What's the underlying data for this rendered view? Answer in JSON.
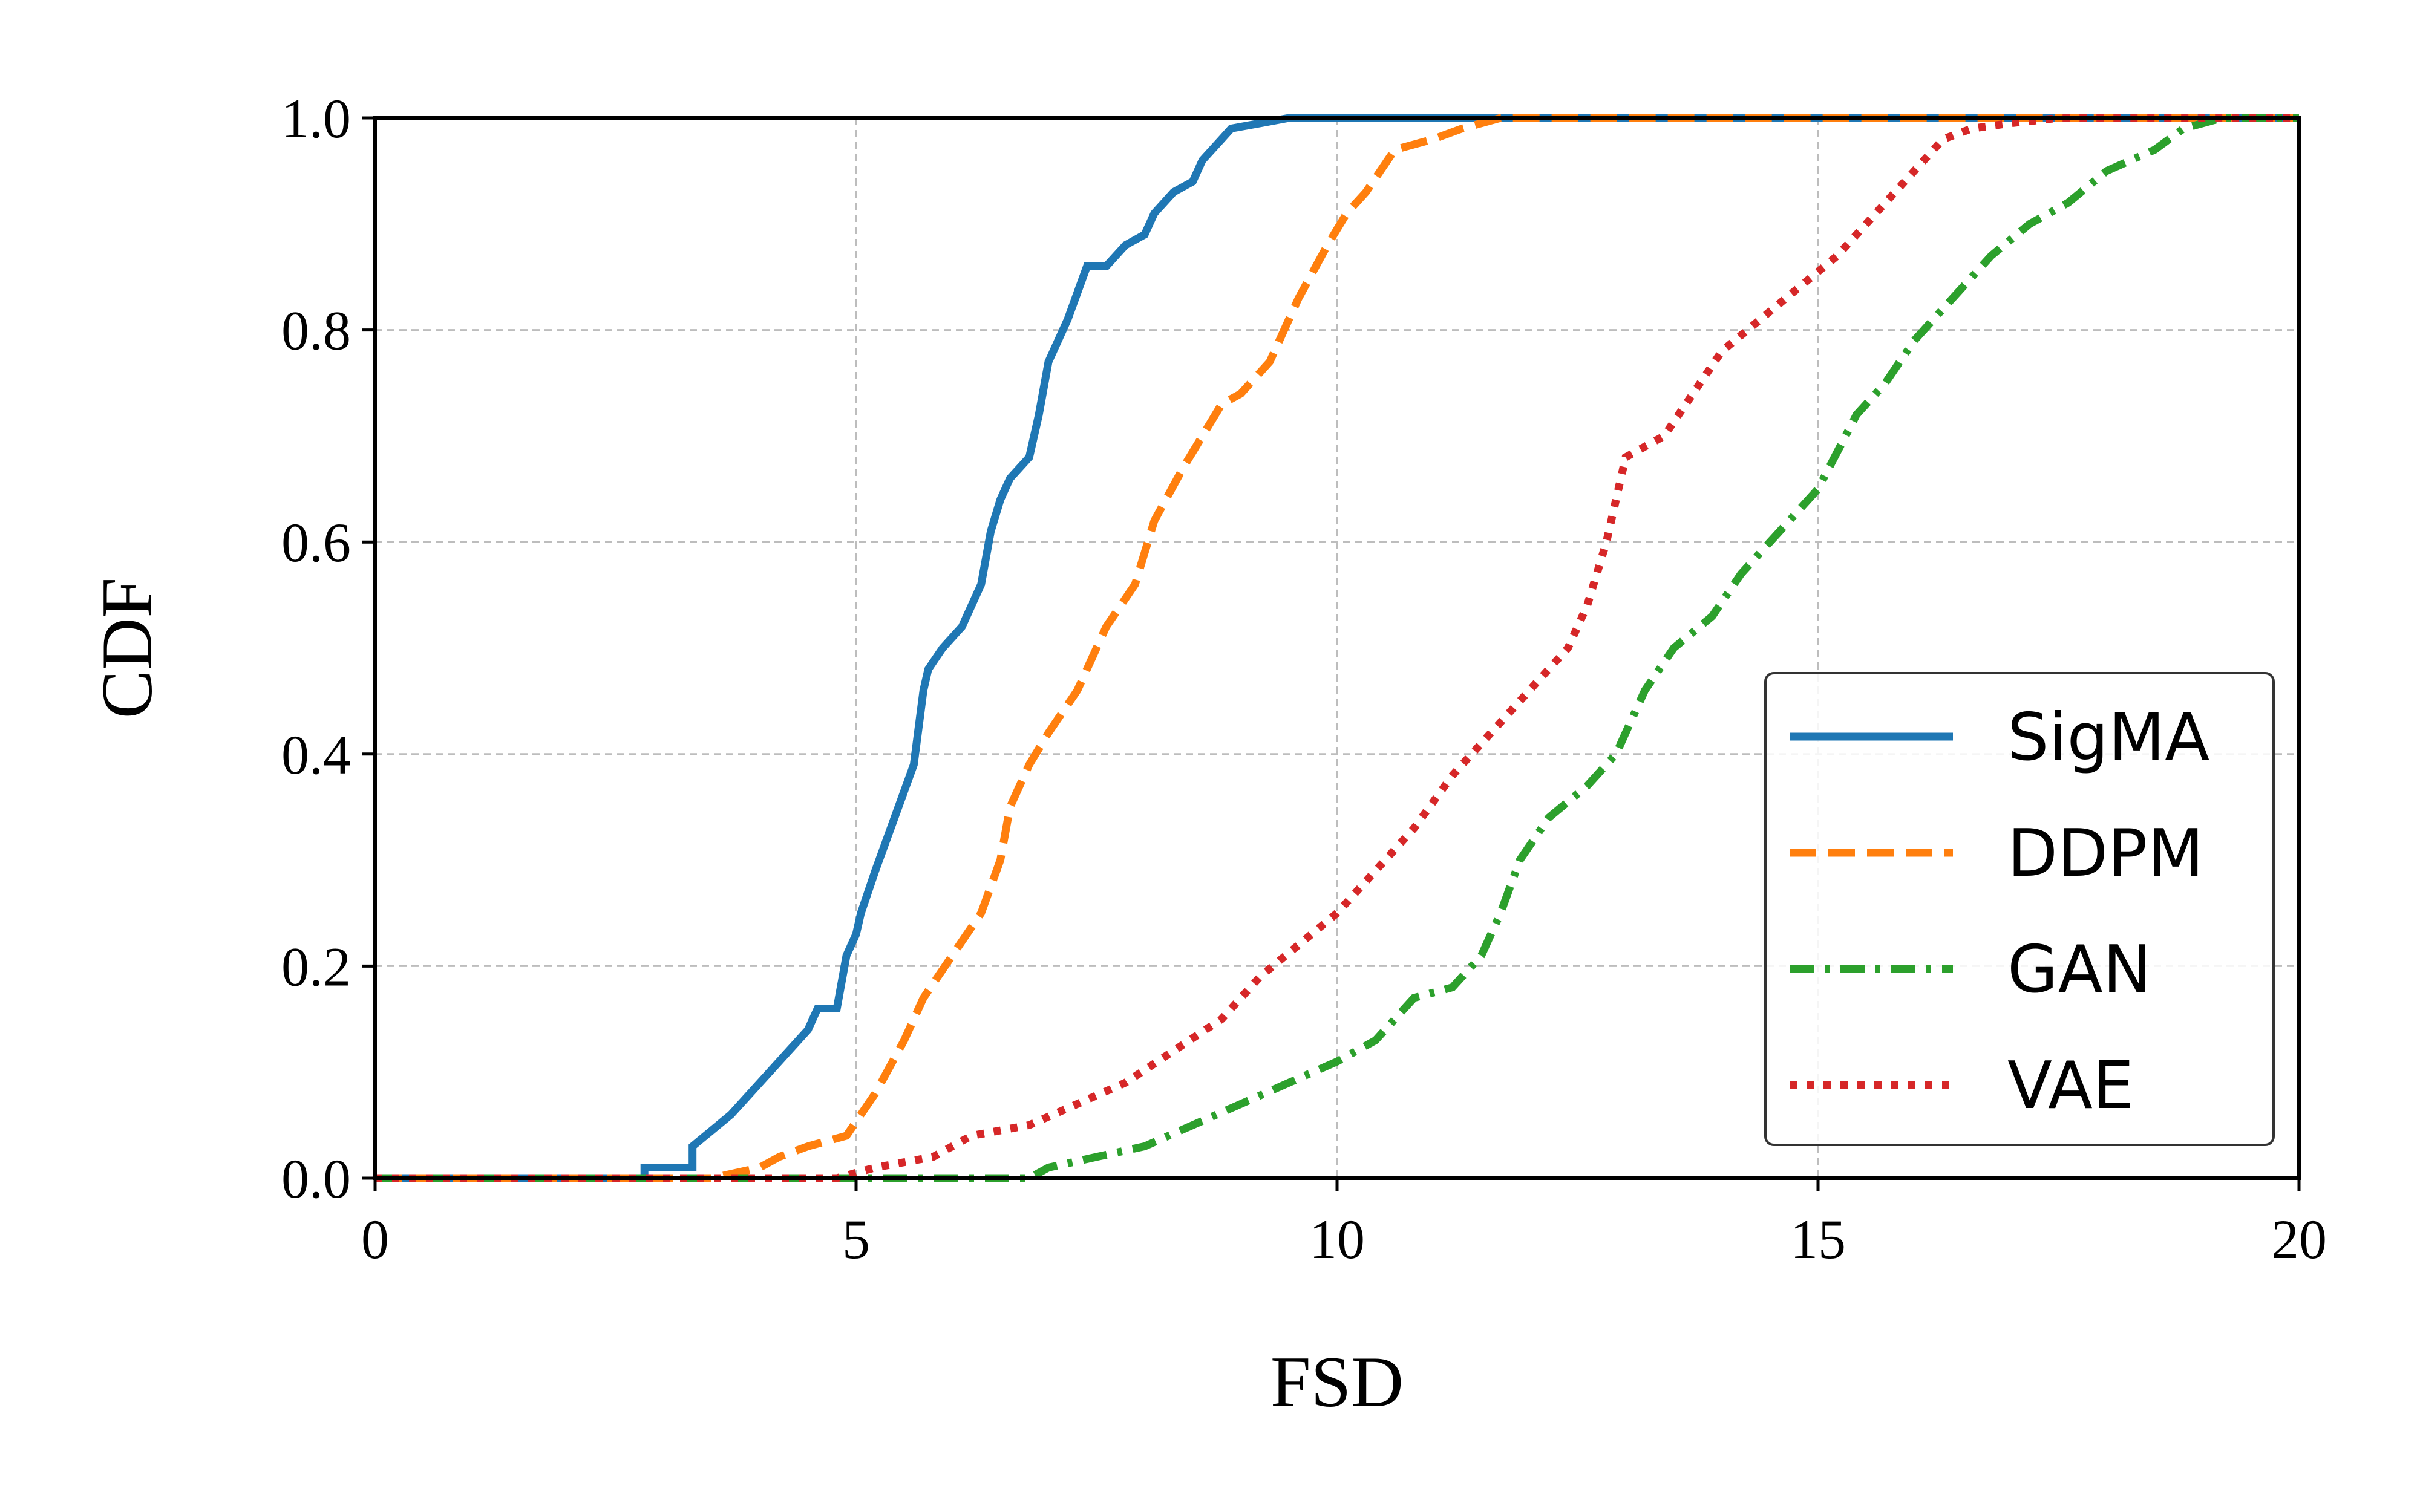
{
  "chart_data": {
    "type": "line",
    "title": "",
    "xlabel": "FSD",
    "ylabel": "CDF",
    "xlim": [
      0,
      20
    ],
    "ylim": [
      0,
      1
    ],
    "xticks": [
      "0",
      "5",
      "10",
      "15",
      "20"
    ],
    "yticks": [
      "0.0",
      "0.2",
      "0.4",
      "0.6",
      "0.8",
      "1.0"
    ],
    "grid": true,
    "legend_position": "lower-right",
    "series": [
      {
        "name": "SigMA",
        "color": "#1f77b4",
        "style": "solid",
        "x": [
          0,
          2.8,
          2.8,
          3.3,
          3.3,
          3.7,
          3.9,
          4.1,
          4.3,
          4.5,
          4.6,
          4.8,
          4.9,
          5.0,
          5.05,
          5.2,
          5.4,
          5.6,
          5.7,
          5.75,
          5.9,
          6.1,
          6.3,
          6.4,
          6.5,
          6.6,
          6.8,
          6.9,
          7.0,
          7.2,
          7.4,
          7.5,
          7.6,
          7.8,
          8.0,
          8.1,
          8.3,
          8.5,
          8.6,
          8.8,
          8.9,
          9.2,
          9.5,
          20
        ],
        "y": [
          0.0,
          0.0,
          0.01,
          0.01,
          0.03,
          0.06,
          0.08,
          0.1,
          0.12,
          0.14,
          0.16,
          0.16,
          0.21,
          0.23,
          0.25,
          0.29,
          0.34,
          0.39,
          0.46,
          0.48,
          0.5,
          0.52,
          0.56,
          0.61,
          0.64,
          0.66,
          0.68,
          0.72,
          0.77,
          0.81,
          0.86,
          0.86,
          0.86,
          0.88,
          0.89,
          0.91,
          0.93,
          0.94,
          0.96,
          0.98,
          0.99,
          0.995,
          1.0,
          1.0
        ]
      },
      {
        "name": "DDPM",
        "color": "#ff7f0e",
        "style": "dashed",
        "x": [
          0,
          3.5,
          4.0,
          4.2,
          4.5,
          4.9,
          5.2,
          5.5,
          5.7,
          6.0,
          6.3,
          6.5,
          6.6,
          6.8,
          7.0,
          7.3,
          7.6,
          7.9,
          8.1,
          8.4,
          8.8,
          9.0,
          9.3,
          9.6,
          9.9,
          10.1,
          10.3,
          10.6,
          11.0,
          11.3,
          11.7,
          20
        ],
        "y": [
          0.0,
          0.0,
          0.01,
          0.02,
          0.03,
          0.04,
          0.08,
          0.13,
          0.17,
          0.21,
          0.25,
          0.3,
          0.35,
          0.39,
          0.42,
          0.46,
          0.52,
          0.56,
          0.62,
          0.67,
          0.73,
          0.74,
          0.77,
          0.83,
          0.88,
          0.91,
          0.93,
          0.97,
          0.98,
          0.99,
          1.0,
          1.0
        ]
      },
      {
        "name": "GAN",
        "color": "#2ca02c",
        "style": "dashdot",
        "x": [
          0,
          6.8,
          7.0,
          7.5,
          8.0,
          8.5,
          9.0,
          9.5,
          10.0,
          10.4,
          10.8,
          11.2,
          11.5,
          11.7,
          11.9,
          12.2,
          12.6,
          12.9,
          13.2,
          13.5,
          13.9,
          14.2,
          14.6,
          15.0,
          15.4,
          15.7,
          16.0,
          16.4,
          16.8,
          17.2,
          17.6,
          18.0,
          18.5,
          18.8,
          19.2,
          20
        ],
        "y": [
          0.0,
          0.0,
          0.01,
          0.02,
          0.03,
          0.05,
          0.07,
          0.09,
          0.11,
          0.13,
          0.17,
          0.18,
          0.21,
          0.25,
          0.3,
          0.34,
          0.37,
          0.4,
          0.46,
          0.5,
          0.53,
          0.57,
          0.61,
          0.65,
          0.72,
          0.75,
          0.79,
          0.83,
          0.87,
          0.9,
          0.92,
          0.95,
          0.97,
          0.99,
          1.0,
          1.0
        ]
      },
      {
        "name": "VAE",
        "color": "#d62728",
        "style": "dotted",
        "x": [
          0,
          4.8,
          5.2,
          5.8,
          6.2,
          6.8,
          7.3,
          7.8,
          8.3,
          8.8,
          9.2,
          9.6,
          10.0,
          10.4,
          10.8,
          11.2,
          11.6,
          12.0,
          12.4,
          12.6,
          12.8,
          13.0,
          13.4,
          13.7,
          14.0,
          14.4,
          14.8,
          15.2,
          15.6,
          16.0,
          16.3,
          16.6,
          17.0,
          17.5,
          20
        ],
        "y": [
          0.0,
          0.0,
          0.01,
          0.02,
          0.04,
          0.05,
          0.07,
          0.09,
          0.12,
          0.15,
          0.19,
          0.22,
          0.25,
          0.29,
          0.33,
          0.38,
          0.42,
          0.46,
          0.5,
          0.54,
          0.6,
          0.68,
          0.7,
          0.74,
          0.78,
          0.81,
          0.84,
          0.87,
          0.91,
          0.95,
          0.98,
          0.99,
          0.995,
          1.0,
          1.0
        ]
      }
    ]
  }
}
